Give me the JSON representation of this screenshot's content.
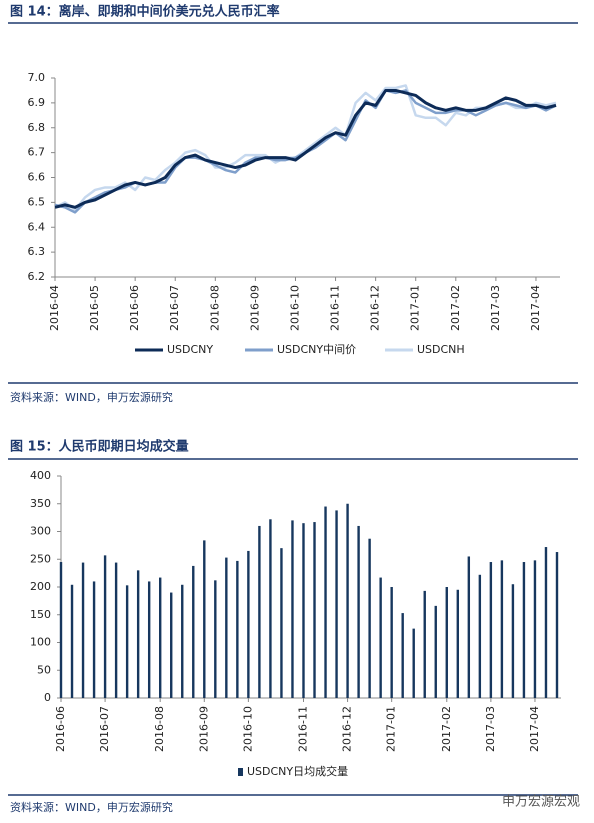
{
  "chart_data": [
    {
      "type": "line",
      "title": "图 14：离岸、即期和中间价美元兑人民币汇率",
      "source": "资料来源：WIND，申万宏源研究",
      "categories": [
        "2016-04",
        null,
        null,
        null,
        "2016-05",
        null,
        null,
        null,
        "2016-06",
        null,
        null,
        null,
        "2016-07",
        null,
        null,
        null,
        "2016-08",
        null,
        null,
        null,
        "2016-09",
        null,
        null,
        null,
        "2016-10",
        null,
        null,
        null,
        "2016-11",
        null,
        null,
        null,
        "2016-12",
        null,
        null,
        null,
        "2017-01",
        null,
        null,
        null,
        "2017-02",
        null,
        null,
        null,
        "2017-03",
        null,
        null,
        null,
        "2017-04",
        null,
        null
      ],
      "series": [
        {
          "name": "USDCNY",
          "color": "#0d2b57",
          "values": [
            6.48,
            6.49,
            6.48,
            6.5,
            6.51,
            6.53,
            6.55,
            6.57,
            6.58,
            6.57,
            6.58,
            6.6,
            6.65,
            6.68,
            6.69,
            6.67,
            6.66,
            6.65,
            6.64,
            6.65,
            6.67,
            6.68,
            6.68,
            6.68,
            6.67,
            6.7,
            6.73,
            6.76,
            6.78,
            6.77,
            6.85,
            6.9,
            6.89,
            6.95,
            6.95,
            6.94,
            6.93,
            6.9,
            6.88,
            6.87,
            6.88,
            6.87,
            6.87,
            6.88,
            6.9,
            6.92,
            6.91,
            6.89,
            6.89,
            6.88,
            6.89
          ]
        },
        {
          "name": "USDCNY中间价",
          "color": "#7f9fcb",
          "values": [
            6.49,
            6.48,
            6.46,
            6.5,
            6.52,
            6.54,
            6.55,
            6.56,
            6.58,
            6.57,
            6.58,
            6.58,
            6.64,
            6.68,
            6.68,
            6.67,
            6.65,
            6.63,
            6.62,
            6.66,
            6.68,
            6.68,
            6.67,
            6.67,
            6.68,
            6.7,
            6.72,
            6.75,
            6.78,
            6.75,
            6.83,
            6.91,
            6.88,
            6.95,
            6.94,
            6.95,
            6.9,
            6.88,
            6.86,
            6.86,
            6.87,
            6.87,
            6.85,
            6.87,
            6.89,
            6.9,
            6.89,
            6.88,
            6.89,
            6.87,
            6.89
          ]
        },
        {
          "name": "USDCNH",
          "color": "#c6d8ee",
          "values": [
            6.48,
            6.5,
            6.47,
            6.52,
            6.55,
            6.56,
            6.56,
            6.58,
            6.55,
            6.6,
            6.59,
            6.63,
            6.66,
            6.7,
            6.71,
            6.69,
            6.64,
            6.64,
            6.66,
            6.69,
            6.69,
            6.69,
            6.66,
            6.68,
            6.68,
            6.71,
            6.74,
            6.77,
            6.8,
            6.77,
            6.9,
            6.94,
            6.91,
            6.96,
            6.96,
            6.97,
            6.85,
            6.84,
            6.84,
            6.81,
            6.86,
            6.85,
            6.88,
            6.88,
            6.89,
            6.9,
            6.88,
            6.88,
            6.9,
            6.89,
            6.9
          ]
        }
      ],
      "ylim": [
        6.2,
        7.0
      ],
      "yticks": [
        6.2,
        6.3,
        6.4,
        6.5,
        6.6,
        6.7,
        6.8,
        6.9,
        {
          "value": 7,
          "label": "7.0"
        }
      ],
      "legend": "bottom"
    },
    {
      "type": "bar",
      "title": "图 15：人民币即期日均成交量",
      "source": "资料来源：WIND，申万宏源研究",
      "categories": [
        "2016-06",
        null,
        null,
        null,
        "2016-07",
        null,
        null,
        null,
        null,
        "2016-08",
        null,
        null,
        null,
        "2016-09",
        null,
        null,
        null,
        "2016-10",
        null,
        null,
        null,
        null,
        "2016-11",
        null,
        null,
        null,
        "2016-12",
        null,
        null,
        null,
        "2017-01",
        null,
        null,
        null,
        null,
        "2017-02",
        null,
        null,
        null,
        "2017-03",
        null,
        null,
        null,
        "2017-04",
        null,
        null
      ],
      "series": [
        {
          "name": "USDCNY日均成交量",
          "color": "#17375e",
          "values": [
            245,
            204,
            244,
            210,
            257,
            244,
            203,
            230,
            210,
            217,
            190,
            204,
            238,
            284,
            212,
            253,
            247,
            265,
            310,
            322,
            270,
            320,
            315,
            317,
            345,
            338,
            350,
            310,
            287,
            217,
            200,
            153,
            125,
            193,
            166,
            200,
            195,
            255,
            222,
            245,
            248,
            205,
            245,
            248,
            272,
            263
          ]
        }
      ],
      "ylim": [
        0,
        400
      ],
      "yticks": [
        0,
        50,
        100,
        150,
        200,
        250,
        300,
        350,
        400
      ],
      "legend": "bottom"
    }
  ],
  "watermark": "申万宏源宏观"
}
